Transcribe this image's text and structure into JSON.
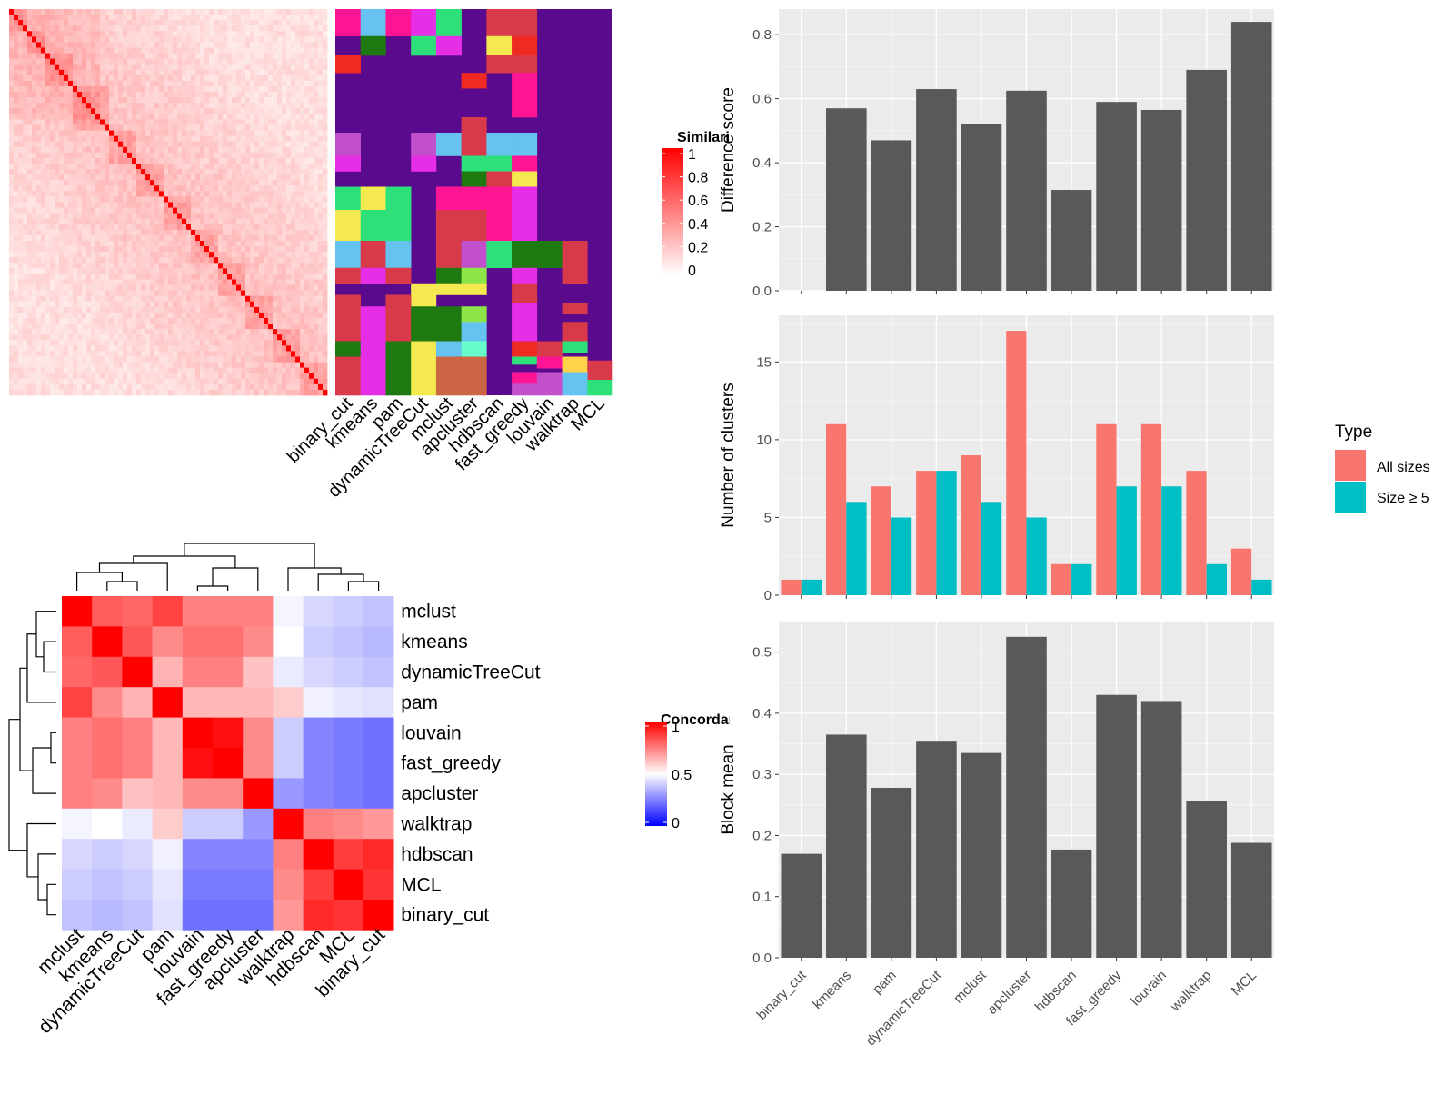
{
  "methods_order_bars": [
    "binary_cut",
    "kmeans",
    "pam",
    "dynamicTreeCut",
    "mclust",
    "apcluster",
    "hdbscan",
    "fast_greedy",
    "louvain",
    "walktrap",
    "MCL"
  ],
  "top_left_heatmap": {
    "legend_title": "Similarity",
    "legend_ticks": [
      "1",
      "0.8",
      "0.6",
      "0.4",
      "0.2",
      "0"
    ],
    "legend_colors": [
      "#ffffff",
      "#ff0000"
    ],
    "method_columns": [
      "binary_cut",
      "kmeans",
      "pam",
      "dynamicTreeCut",
      "mclust",
      "apcluster",
      "hdbscan",
      "fast_greedy",
      "louvain",
      "walktrap",
      "MCL"
    ],
    "background_cluster_color": "#5a0a8c",
    "cluster_palette": [
      "#ff1493",
      "#66c2ee",
      "#e62ee6",
      "#2ee07a",
      "#d93a4a",
      "#1e7a10",
      "#f4ea50",
      "#ee2a22",
      "#c24fcc",
      "#8ee54a",
      "#cc6644",
      "#66ffcc",
      "#ffd24a"
    ]
  },
  "concordance_heatmap": {
    "legend_title": "Concordance",
    "legend_ticks": [
      "1",
      "0.5",
      "0"
    ],
    "legend_colors": [
      "#0000ff",
      "#ffffff",
      "#ff0000"
    ],
    "methods": [
      "mclust",
      "kmeans",
      "dynamicTreeCut",
      "pam",
      "louvain",
      "fast_greedy",
      "apcluster",
      "walktrap",
      "hdbscan",
      "MCL",
      "binary_cut"
    ],
    "matrix": [
      [
        1.0,
        0.82,
        0.8,
        0.87,
        0.75,
        0.75,
        0.75,
        0.48,
        0.42,
        0.4,
        0.38
      ],
      [
        0.82,
        1.0,
        0.83,
        0.73,
        0.78,
        0.78,
        0.73,
        0.5,
        0.4,
        0.38,
        0.36
      ],
      [
        0.8,
        0.83,
        1.0,
        0.65,
        0.75,
        0.75,
        0.62,
        0.46,
        0.42,
        0.4,
        0.38
      ],
      [
        0.87,
        0.73,
        0.65,
        1.0,
        0.64,
        0.64,
        0.64,
        0.6,
        0.47,
        0.45,
        0.44
      ],
      [
        0.75,
        0.78,
        0.75,
        0.64,
        1.0,
        0.97,
        0.73,
        0.4,
        0.26,
        0.24,
        0.22
      ],
      [
        0.75,
        0.78,
        0.75,
        0.64,
        0.97,
        1.0,
        0.73,
        0.4,
        0.26,
        0.24,
        0.22
      ],
      [
        0.75,
        0.73,
        0.62,
        0.64,
        0.73,
        0.73,
        1.0,
        0.3,
        0.26,
        0.24,
        0.22
      ],
      [
        0.48,
        0.5,
        0.46,
        0.6,
        0.4,
        0.4,
        0.3,
        1.0,
        0.75,
        0.73,
        0.7
      ],
      [
        0.42,
        0.4,
        0.42,
        0.47,
        0.26,
        0.26,
        0.26,
        0.75,
        1.0,
        0.88,
        0.92
      ],
      [
        0.4,
        0.38,
        0.4,
        0.45,
        0.24,
        0.24,
        0.24,
        0.73,
        0.88,
        1.0,
        0.9
      ],
      [
        0.38,
        0.36,
        0.38,
        0.44,
        0.22,
        0.22,
        0.22,
        0.7,
        0.92,
        0.9,
        1.0
      ]
    ]
  },
  "legend_type": {
    "title": "Type",
    "items": [
      {
        "label": "All sizes",
        "color": "#f8766d"
      },
      {
        "label": "Size ≥ 5",
        "color": "#00bfc4"
      }
    ]
  },
  "chart_data": [
    {
      "type": "bar",
      "categories": [
        "binary_cut",
        "kmeans",
        "pam",
        "dynamicTreeCut",
        "mclust",
        "apcluster",
        "hdbscan",
        "fast_greedy",
        "louvain",
        "walktrap",
        "MCL"
      ],
      "values": [
        0.0,
        0.57,
        0.47,
        0.63,
        0.52,
        0.625,
        0.315,
        0.59,
        0.565,
        0.69,
        0.84
      ],
      "xlabel": "",
      "ylabel": "Difference score",
      "ylim": [
        0,
        0.88
      ],
      "yticks": [
        "0.0",
        "0.2",
        "0.4",
        "0.6",
        "0.8"
      ],
      "bar_color": "#595959",
      "panel_bg": "#ebebeb"
    },
    {
      "type": "bar",
      "categories": [
        "binary_cut",
        "kmeans",
        "pam",
        "dynamicTreeCut",
        "mclust",
        "apcluster",
        "hdbscan",
        "fast_greedy",
        "louvain",
        "walktrap",
        "MCL"
      ],
      "series": [
        {
          "name": "All sizes",
          "values": [
            1,
            11,
            7,
            8,
            9,
            17,
            2,
            11,
            11,
            8,
            3
          ]
        },
        {
          "name": "Size ≥ 5",
          "values": [
            1,
            6,
            5,
            8,
            6,
            5,
            2,
            7,
            7,
            2,
            1
          ]
        }
      ],
      "xlabel": "",
      "ylabel": "Number of clusters",
      "ylim": [
        0,
        18
      ],
      "yticks": [
        "0",
        "5",
        "10",
        "15"
      ],
      "legend": "right"
    },
    {
      "type": "bar",
      "categories": [
        "binary_cut",
        "kmeans",
        "pam",
        "dynamicTreeCut",
        "mclust",
        "apcluster",
        "hdbscan",
        "fast_greedy",
        "louvain",
        "walktrap",
        "MCL"
      ],
      "values": [
        0.17,
        0.365,
        0.278,
        0.355,
        0.335,
        0.525,
        0.177,
        0.43,
        0.42,
        0.256,
        0.188
      ],
      "xlabel": "",
      "ylabel": "Block mean",
      "ylim": [
        0,
        0.55
      ],
      "yticks": [
        "0.0",
        "0.1",
        "0.2",
        "0.3",
        "0.4",
        "0.5"
      ],
      "bar_color": "#595959"
    }
  ]
}
